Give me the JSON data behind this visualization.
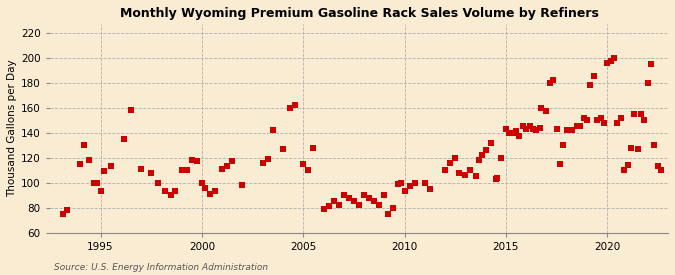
{
  "title": "Monthly Wyoming Premium Gasoline Rack Sales Volume by Refiners",
  "ylabel": "Thousand Gallons per Day",
  "source": "Source: U.S. Energy Information Administration",
  "ylim": [
    60,
    227
  ],
  "yticks": [
    60,
    80,
    100,
    120,
    140,
    160,
    180,
    200,
    220
  ],
  "xlim": [
    1992.5,
    2023.0
  ],
  "xticks": [
    1995,
    2000,
    2005,
    2010,
    2015,
    2020
  ],
  "bg_color": "#faecd2",
  "marker_color": "#cc0000",
  "marker_size": 14,
  "data": [
    [
      1993.17,
      75
    ],
    [
      1993.33,
      78
    ],
    [
      1994.0,
      115
    ],
    [
      1994.17,
      130
    ],
    [
      1994.42,
      118
    ],
    [
      1994.67,
      100
    ],
    [
      1994.83,
      100
    ],
    [
      1995.0,
      93
    ],
    [
      1995.17,
      109
    ],
    [
      1995.5,
      113
    ],
    [
      1996.17,
      135
    ],
    [
      1996.5,
      158
    ],
    [
      1997.0,
      111
    ],
    [
      1997.5,
      108
    ],
    [
      1997.83,
      100
    ],
    [
      1998.17,
      93
    ],
    [
      1998.5,
      90
    ],
    [
      1998.67,
      93
    ],
    [
      1999.0,
      110
    ],
    [
      1999.25,
      110
    ],
    [
      1999.5,
      118
    ],
    [
      1999.75,
      117
    ],
    [
      2000.0,
      100
    ],
    [
      2000.17,
      96
    ],
    [
      2000.42,
      91
    ],
    [
      2000.67,
      93
    ],
    [
      2001.0,
      111
    ],
    [
      2001.25,
      113
    ],
    [
      2001.5,
      117
    ],
    [
      2002.0,
      98
    ],
    [
      2003.0,
      116
    ],
    [
      2003.25,
      119
    ],
    [
      2003.5,
      142
    ],
    [
      2004.0,
      127
    ],
    [
      2004.33,
      160
    ],
    [
      2004.58,
      162
    ],
    [
      2005.0,
      115
    ],
    [
      2005.25,
      110
    ],
    [
      2005.5,
      128
    ],
    [
      2006.0,
      79
    ],
    [
      2006.25,
      81
    ],
    [
      2006.5,
      85
    ],
    [
      2006.75,
      82
    ],
    [
      2007.0,
      90
    ],
    [
      2007.25,
      88
    ],
    [
      2007.5,
      85
    ],
    [
      2007.75,
      82
    ],
    [
      2008.0,
      90
    ],
    [
      2008.25,
      88
    ],
    [
      2008.5,
      85
    ],
    [
      2008.75,
      82
    ],
    [
      2009.0,
      90
    ],
    [
      2009.17,
      75
    ],
    [
      2009.42,
      80
    ],
    [
      2009.67,
      99
    ],
    [
      2009.83,
      100
    ],
    [
      2010.0,
      93
    ],
    [
      2010.25,
      97
    ],
    [
      2010.5,
      100
    ],
    [
      2011.0,
      100
    ],
    [
      2011.25,
      95
    ],
    [
      2012.0,
      110
    ],
    [
      2012.25,
      116
    ],
    [
      2012.5,
      120
    ],
    [
      2012.67,
      108
    ],
    [
      2013.0,
      106
    ],
    [
      2013.25,
      110
    ],
    [
      2013.5,
      105
    ],
    [
      2013.67,
      118
    ],
    [
      2013.83,
      122
    ],
    [
      2014.0,
      126
    ],
    [
      2014.25,
      132
    ],
    [
      2014.5,
      103
    ],
    [
      2014.58,
      104
    ],
    [
      2014.75,
      120
    ],
    [
      2015.0,
      143
    ],
    [
      2015.17,
      140
    ],
    [
      2015.33,
      140
    ],
    [
      2015.5,
      141
    ],
    [
      2015.67,
      137
    ],
    [
      2015.83,
      145
    ],
    [
      2016.0,
      143
    ],
    [
      2016.17,
      145
    ],
    [
      2016.33,
      143
    ],
    [
      2016.5,
      142
    ],
    [
      2016.67,
      144
    ],
    [
      2016.75,
      160
    ],
    [
      2017.0,
      157
    ],
    [
      2017.17,
      180
    ],
    [
      2017.33,
      182
    ],
    [
      2017.5,
      143
    ],
    [
      2017.67,
      115
    ],
    [
      2017.83,
      130
    ],
    [
      2018.0,
      142
    ],
    [
      2018.25,
      142
    ],
    [
      2018.5,
      145
    ],
    [
      2018.67,
      145
    ],
    [
      2018.83,
      152
    ],
    [
      2019.0,
      150
    ],
    [
      2019.17,
      178
    ],
    [
      2019.33,
      185
    ],
    [
      2019.5,
      150
    ],
    [
      2019.67,
      152
    ],
    [
      2019.83,
      148
    ],
    [
      2020.0,
      196
    ],
    [
      2020.17,
      197
    ],
    [
      2020.33,
      200
    ],
    [
      2020.5,
      148
    ],
    [
      2020.67,
      152
    ],
    [
      2020.83,
      110
    ],
    [
      2021.0,
      114
    ],
    [
      2021.17,
      128
    ],
    [
      2021.33,
      155
    ],
    [
      2021.5,
      127
    ],
    [
      2021.67,
      155
    ],
    [
      2021.83,
      150
    ],
    [
      2022.0,
      180
    ],
    [
      2022.17,
      195
    ],
    [
      2022.33,
      130
    ],
    [
      2022.5,
      113
    ],
    [
      2022.67,
      110
    ]
  ]
}
